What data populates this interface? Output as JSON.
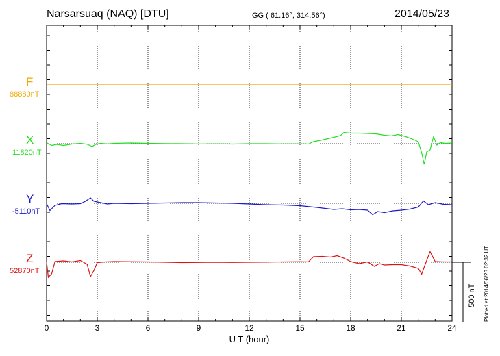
{
  "header": {
    "station": "Narsarsuaq (NAQ)  [DTU]",
    "coords": "GG ( 61.16°, 314.56°)",
    "date": "2014/05/23"
  },
  "components": [
    {
      "letter": "F",
      "baseline": "88880nT",
      "color": "#f0a800"
    },
    {
      "letter": "X",
      "baseline": "11820nT",
      "color": "#22dd22"
    },
    {
      "letter": "Y",
      "baseline": "-5110nT",
      "color": "#1a1acc"
    },
    {
      "letter": "Z",
      "baseline": "52870nT",
      "color": "#dd1111"
    }
  ],
  "scale_bar": {
    "label": "500 nT"
  },
  "plotted_note": "Plotted at 2014/06/23 02:32 UT",
  "chart_data": {
    "type": "line",
    "xlabel": "U T (hour)",
    "xlim": [
      0,
      24
    ],
    "xticks": [
      0,
      3,
      6,
      9,
      12,
      15,
      18,
      21,
      24
    ],
    "ylabel": "",
    "scale_nT": 500,
    "grid": true,
    "series": [
      {
        "name": "F",
        "baseline_nT": 88880,
        "color": "#f0a800",
        "points": [
          [
            0,
            0
          ],
          [
            24,
            0
          ]
        ]
      },
      {
        "name": "X",
        "baseline_nT": 11820,
        "color": "#22dd22",
        "points": [
          [
            0,
            15
          ],
          [
            0.3,
            -25
          ],
          [
            0.6,
            -10
          ],
          [
            1,
            -25
          ],
          [
            1.5,
            -5
          ],
          [
            2,
            5
          ],
          [
            2.4,
            -8
          ],
          [
            2.7,
            -40
          ],
          [
            2.9,
            -10
          ],
          [
            3.2,
            5
          ],
          [
            3.6,
            -3
          ],
          [
            4,
            5
          ],
          [
            5,
            10
          ],
          [
            6,
            5
          ],
          [
            7,
            2
          ],
          [
            8,
            0
          ],
          [
            9,
            -3
          ],
          [
            10,
            -2
          ],
          [
            11,
            -5
          ],
          [
            12,
            0
          ],
          [
            13,
            0
          ],
          [
            14,
            -3
          ],
          [
            15,
            -2
          ],
          [
            15.5,
            -5
          ],
          [
            15.8,
            30
          ],
          [
            16.3,
            55
          ],
          [
            17,
            95
          ],
          [
            17.4,
            120
          ],
          [
            17.6,
            165
          ],
          [
            18,
            155
          ],
          [
            18.5,
            155
          ],
          [
            19,
            150
          ],
          [
            19.5,
            145
          ],
          [
            20,
            125
          ],
          [
            20.4,
            115
          ],
          [
            20.8,
            135
          ],
          [
            21.2,
            110
          ],
          [
            21.6,
            75
          ],
          [
            22,
            30
          ],
          [
            22.2,
            -130
          ],
          [
            22.35,
            -300
          ],
          [
            22.5,
            -120
          ],
          [
            22.7,
            -90
          ],
          [
            22.9,
            105
          ],
          [
            23.1,
            -20
          ],
          [
            23.3,
            15
          ],
          [
            23.6,
            5
          ],
          [
            24,
            10
          ]
        ]
      },
      {
        "name": "Y",
        "baseline_nT": -5110,
        "color": "#1a1acc",
        "points": [
          [
            0,
            -5
          ],
          [
            0.2,
            -105
          ],
          [
            0.5,
            -30
          ],
          [
            0.9,
            -5
          ],
          [
            1.5,
            -10
          ],
          [
            2,
            -5
          ],
          [
            2.3,
            30
          ],
          [
            2.6,
            80
          ],
          [
            2.8,
            30
          ],
          [
            3.2,
            10
          ],
          [
            3.6,
            -10
          ],
          [
            4,
            0
          ],
          [
            5,
            -5
          ],
          [
            6,
            0
          ],
          [
            7,
            5
          ],
          [
            8,
            10
          ],
          [
            9,
            10
          ],
          [
            10,
            5
          ],
          [
            11,
            0
          ],
          [
            12,
            -10
          ],
          [
            13,
            -20
          ],
          [
            14,
            -25
          ],
          [
            15,
            -35
          ],
          [
            16,
            -60
          ],
          [
            17,
            -90
          ],
          [
            17.5,
            -80
          ],
          [
            18,
            -95
          ],
          [
            18.5,
            -90
          ],
          [
            19,
            -100
          ],
          [
            19.3,
            -165
          ],
          [
            19.6,
            -120
          ],
          [
            20,
            -135
          ],
          [
            20.5,
            -110
          ],
          [
            21,
            -100
          ],
          [
            21.5,
            -85
          ],
          [
            22,
            -55
          ],
          [
            22.3,
            35
          ],
          [
            22.6,
            -20
          ],
          [
            23,
            10
          ],
          [
            23.5,
            -15
          ],
          [
            24,
            -20
          ]
        ]
      },
      {
        "name": "Z",
        "baseline_nT": 52870,
        "color": "#dd1111",
        "points": [
          [
            0,
            5
          ],
          [
            0.1,
            -220
          ],
          [
            0.3,
            -170
          ],
          [
            0.5,
            10
          ],
          [
            1,
            20
          ],
          [
            1.5,
            5
          ],
          [
            2,
            25
          ],
          [
            2.4,
            -30
          ],
          [
            2.6,
            -210
          ],
          [
            2.8,
            -120
          ],
          [
            3,
            -5
          ],
          [
            3.5,
            5
          ],
          [
            4,
            10
          ],
          [
            5,
            8
          ],
          [
            6,
            5
          ],
          [
            7,
            0
          ],
          [
            8,
            -5
          ],
          [
            9,
            -3
          ],
          [
            10,
            0
          ],
          [
            11,
            -3
          ],
          [
            12,
            0
          ],
          [
            13,
            2
          ],
          [
            14,
            5
          ],
          [
            15,
            8
          ],
          [
            15.5,
            5
          ],
          [
            15.8,
            80
          ],
          [
            16.3,
            85
          ],
          [
            16.8,
            75
          ],
          [
            17.2,
            95
          ],
          [
            17.6,
            60
          ],
          [
            18,
            10
          ],
          [
            18.5,
            -20
          ],
          [
            19,
            5
          ],
          [
            19.4,
            -60
          ],
          [
            19.7,
            -20
          ],
          [
            20,
            -40
          ],
          [
            20.5,
            -35
          ],
          [
            21,
            -35
          ],
          [
            21.5,
            -55
          ],
          [
            22,
            -90
          ],
          [
            22.2,
            -175
          ],
          [
            22.4,
            -40
          ],
          [
            22.7,
            155
          ],
          [
            23,
            10
          ],
          [
            23.5,
            5
          ],
          [
            24,
            5
          ]
        ]
      }
    ]
  }
}
